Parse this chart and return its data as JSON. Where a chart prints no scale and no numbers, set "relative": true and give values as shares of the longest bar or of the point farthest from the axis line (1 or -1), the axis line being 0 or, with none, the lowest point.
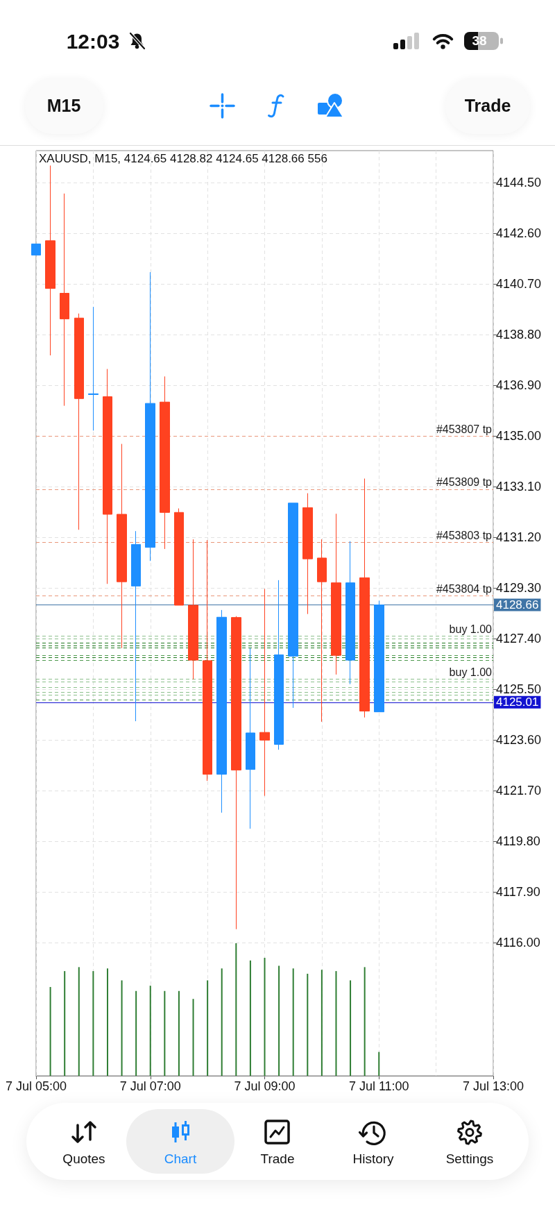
{
  "chart_data": [
    {
      "type": "candlestick",
      "title": "XAUUSD, M15, 4124.65 4128.82 4124.65 4128.66 556",
      "categories": [
        "7 Jul 05:00",
        null,
        null,
        null,
        null,
        null,
        null,
        null,
        "7 Jul 07:00",
        null,
        null,
        null,
        null,
        null,
        null,
        null,
        "7 Jul 09:00",
        null,
        null,
        null,
        null,
        null,
        null,
        null,
        "7 Jul 11:00",
        null,
        null,
        null,
        null,
        null,
        null,
        null,
        "7 Jul 13:00"
      ],
      "ohlc": [
        [
          4141.78,
          4142.2,
          4141.78,
          4142.2
        ],
        [
          4142.32,
          4145.14,
          4138.02,
          4140.53
        ],
        [
          4140.35,
          4144.09,
          4136.13,
          4139.39
        ],
        [
          4139.42,
          4139.59,
          4131.48,
          4136.4
        ],
        [
          4136.55,
          4139.84,
          4135.2,
          4136.58
        ],
        [
          4136.47,
          4137.51,
          4129.45,
          4132.06
        ],
        [
          4132.06,
          4134.7,
          4127.04,
          4129.53
        ],
        [
          4129.37,
          4131.43,
          4124.3,
          4130.93
        ],
        [
          4130.82,
          4141.14,
          4130.31,
          4136.22
        ],
        [
          4136.27,
          4137.23,
          4130.76,
          4132.13
        ],
        [
          4132.13,
          4132.28,
          4128.65,
          4128.65
        ],
        [
          4128.65,
          4131.12,
          4125.87,
          4126.59
        ],
        [
          4126.57,
          4131.09,
          4122.06,
          4122.31
        ],
        [
          4122.31,
          4128.47,
          4120.87,
          4128.2
        ],
        [
          4128.19,
          4128.24,
          4116.5,
          4122.47
        ],
        [
          4122.49,
          4127.04,
          4120.27,
          4123.86
        ],
        [
          4123.88,
          4129.26,
          4121.5,
          4123.59
        ],
        [
          4123.43,
          4129.59,
          4123.23,
          4126.79
        ],
        [
          4126.74,
          4132.48,
          4124.8,
          4132.48
        ],
        [
          4132.31,
          4132.85,
          4128.32,
          4130.39
        ],
        [
          4130.42,
          4131.12,
          4124.28,
          4129.53
        ],
        [
          4129.49,
          4132.08,
          4126.05,
          4126.77
        ],
        [
          4126.59,
          4131.05,
          4125.69,
          4129.49
        ],
        [
          4129.68,
          4133.4,
          4124.44,
          4124.68
        ],
        [
          4124.65,
          4128.82,
          4124.65,
          4128.66
        ],
        null,
        null,
        null,
        null,
        null,
        null,
        null,
        null
      ],
      "colors": [
        "#1e8fff",
        "#ff4220",
        "#ff4220",
        "#ff4220",
        "#1e8fff",
        "#ff4220",
        "#ff4220",
        "#1e8fff",
        "#1e8fff",
        "#ff4220",
        "#ff4220",
        "#ff4220",
        "#ff4220",
        "#1e8fff",
        "#ff4220",
        "#1e8fff",
        "#ff4220",
        "#1e8fff",
        "#1e8fff",
        "#ff4220",
        "#ff4220",
        "#ff4220",
        "#1e8fff",
        "#ff4220",
        "#1e8fff",
        null,
        null,
        null,
        null,
        null,
        null,
        null,
        null
      ],
      "ylim": [
        4111.0,
        4145.7
      ],
      "yticks": [
        {
          "value": 4144.5,
          "label": "4144.50"
        },
        {
          "value": 4142.6,
          "label": "4142.60"
        },
        {
          "value": 4140.7,
          "label": "4140.70"
        },
        {
          "value": 4138.8,
          "label": "4138.80"
        },
        {
          "value": 4136.9,
          "label": "4136.90"
        },
        {
          "value": 4135,
          "label": "4135.00"
        },
        {
          "value": 4133.1,
          "label": "4133.10"
        },
        {
          "value": 4131.2,
          "label": "4131.20"
        },
        {
          "value": 4129.3,
          "label": "4129.30"
        },
        {
          "value": 4127.4,
          "label": "4127.40"
        },
        {
          "value": 4125.5,
          "label": "4125.50"
        },
        {
          "value": 4123.6,
          "label": "4123.60"
        },
        {
          "value": 4121.7,
          "label": "4121.70"
        },
        {
          "value": 4119.8,
          "label": "4119.80"
        },
        {
          "value": 4117.9,
          "label": "4117.90"
        },
        {
          "value": 4116,
          "label": "4116.00"
        }
      ],
      "grid": true,
      "ref_lines": [
        {
          "axis": "y",
          "value": 4135.0,
          "label": "#453807 tp",
          "color": "#e9967a",
          "line_style": "dashed"
        },
        {
          "axis": "y",
          "value": 4133.0,
          "label": "#453809 tp",
          "color": "#e9967a",
          "line_style": "dashed"
        },
        {
          "axis": "y",
          "value": 4131.0,
          "label": "#453803 tp",
          "color": "#e9967a",
          "line_style": "dashed"
        },
        {
          "axis": "y",
          "value": 4129.0,
          "label": "#453804 tp",
          "color": "#e9967a",
          "line_style": "dashed"
        },
        {
          "axis": "y",
          "value": 4128.66,
          "label": "4128.66",
          "color": "#3f74a6",
          "line_style": "solid"
        },
        {
          "axis": "y",
          "value": 4127.5,
          "label": "buy 1.00",
          "color": "#8cc08c",
          "line_style": "dashed"
        },
        {
          "axis": "y",
          "value": 4127.39,
          "label": null,
          "color": "#8cc08c",
          "line_style": "dashed"
        },
        {
          "axis": "y",
          "value": 4127.23,
          "label": null,
          "color": "#1f7a1f",
          "line_style": "dashed"
        },
        {
          "axis": "y",
          "value": 4127.14,
          "label": null,
          "color": "#1f7a1f",
          "line_style": "dashed"
        },
        {
          "axis": "y",
          "value": 4127.05,
          "label": null,
          "color": "#1f7a1f",
          "line_style": "dashed"
        },
        {
          "axis": "y",
          "value": 4126.78,
          "label": null,
          "color": "#4e9a4e",
          "line_style": "dashed"
        },
        {
          "axis": "y",
          "value": 4126.68,
          "label": null,
          "color": "#1f7a1f",
          "line_style": "dashed"
        },
        {
          "axis": "y",
          "value": 4126.59,
          "label": null,
          "color": "#4e9a4e",
          "line_style": "dashed"
        },
        {
          "axis": "y",
          "value": 4125.88,
          "label": "buy 1.00",
          "color": "#8cc08c",
          "line_style": "dashed"
        },
        {
          "axis": "y",
          "value": 4125.79,
          "label": null,
          "color": "#8cc08c",
          "line_style": "dashed"
        },
        {
          "axis": "y",
          "value": 4125.56,
          "label": null,
          "color": "#8cc08c",
          "line_style": "dashed"
        },
        {
          "axis": "y",
          "value": 4125.4,
          "label": null,
          "color": "#8cc08c",
          "line_style": "dashed"
        },
        {
          "axis": "y",
          "value": 4125.28,
          "label": null,
          "color": "#8cc08c",
          "line_style": "dashed"
        },
        {
          "axis": "y",
          "value": 4125.11,
          "label": null,
          "color": "#4e9a4e",
          "line_style": "dashed"
        },
        {
          "axis": "y",
          "value": 4125.01,
          "label": "4125.01",
          "color": "#1212d0",
          "line_style": "solid"
        }
      ],
      "annotations": [
        "12:03",
        "38",
        "M15",
        "Trade",
        "Quotes",
        "Chart",
        "Trade",
        "History",
        "Settings"
      ]
    },
    {
      "type": "bar",
      "relative": true,
      "categories": [
        null,
        null,
        null,
        null,
        null,
        null,
        null,
        null,
        null,
        null,
        null,
        null,
        null,
        null,
        null,
        null,
        null,
        null,
        null,
        null,
        null,
        null,
        null,
        null,
        null,
        null,
        null,
        null,
        null,
        null,
        null,
        null,
        null
      ],
      "values": [
        null,
        0.67,
        0.79,
        0.82,
        0.79,
        0.81,
        0.72,
        0.64,
        0.68,
        0.64,
        0.64,
        0.58,
        0.72,
        0.81,
        1,
        0.87,
        0.89,
        0.83,
        0.81,
        0.77,
        0.8,
        0.79,
        0.72,
        0.82,
        0.18,
        null,
        null,
        null,
        null,
        null,
        null,
        null,
        null
      ],
      "color": "#2e7d32"
    }
  ]
}
